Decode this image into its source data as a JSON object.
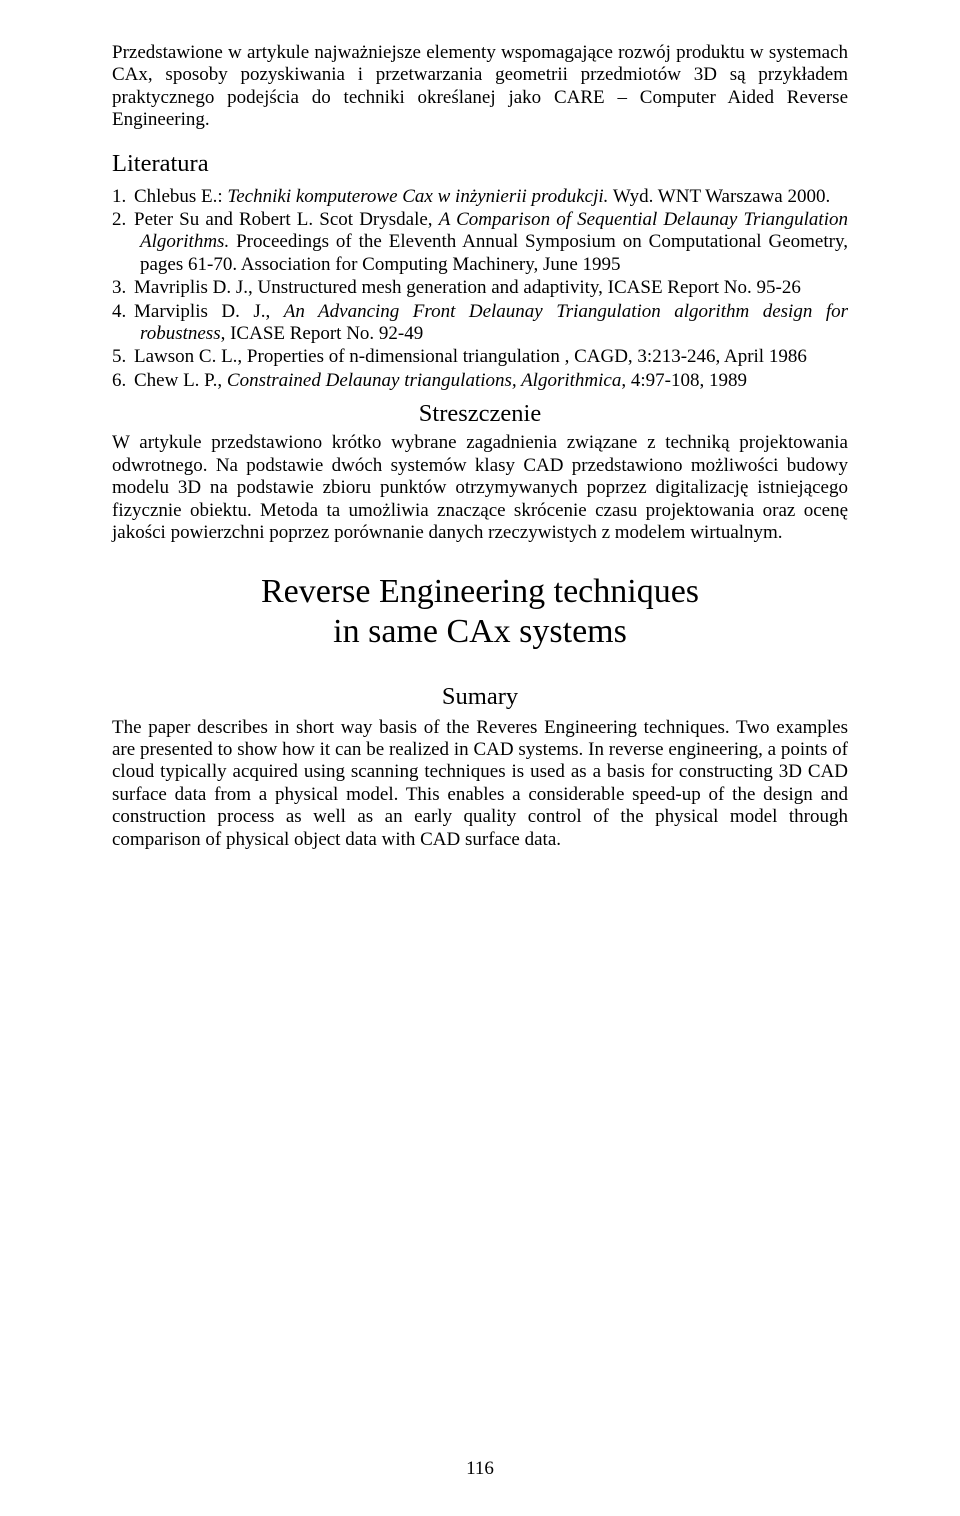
{
  "intro_paragraph": "Przedstawione w artykule najważniejsze elementy wspomagające rozwój produktu w systemach CAx, sposoby pozyskiwania i przetwarzania geometrii przedmiotów 3D są przykładem praktycznego podejścia do techniki określanej jako CARE – Computer Aided Reverse Engineering.",
  "literatura_heading": "Literatura",
  "refs": [
    {
      "num": "1.",
      "pre": "Chlebus E.: ",
      "ital": "Techniki komputerowe Cax w inżynierii produkcji.",
      "post": " Wyd. WNT Warszawa 2000."
    },
    {
      "num": "2.",
      "pre": "Peter Su and Robert L. Scot Drysdale, ",
      "ital": "A Comparison of Sequential Delaunay Triangulation Algorithms.",
      "post": " Proceedings of the Eleventh Annual Symposium on Computational Geometry, pages 61-70. Association for Computing Machinery, June 1995"
    },
    {
      "num": "3.",
      "pre": "Mavriplis D. J., Unstructured mesh generation and adaptivity, ICASE Report No. 95-26",
      "ital": "",
      "post": ""
    },
    {
      "num": "4.",
      "pre": "Marviplis D. J., ",
      "ital": "An Advancing Front Delaunay Triangulation algorithm design for robustness",
      "post": ", ICASE Report No. 92-49"
    },
    {
      "num": "5.",
      "pre": "Lawson C. L., Properties of n-dimensional triangulation , CAGD, 3:213-246, April 1986",
      "ital": "",
      "post": ""
    },
    {
      "num": "6.",
      "pre": "Chew L. P., ",
      "ital": "Constrained Delaunay triangulations, Algorithmica",
      "post": ", 4:97-108, 1989"
    }
  ],
  "streszczenie_heading": "Streszczenie",
  "streszczenie_body": "W artykule przedstawiono krótko wybrane zagadnienia związane z techniką projektowania odwrotnego. Na podstawie dwóch systemów klasy CAD przedstawiono możliwości budowy modelu 3D na podstawie zbioru punktów otrzymywanych poprzez digitalizację istniejącego fizycznie obiektu. Metoda ta umożliwia znaczące skrócenie czasu projektowania oraz ocenę jakości powierzchni poprzez porównanie danych rzeczywistych z modelem wirtualnym.",
  "title_line1": "Reverse Engineering techniques",
  "title_line2": "in same CAx systems",
  "summary_heading": "Sumary",
  "summary_body": "The paper describes in short way basis of the Reveres Engineering techniques. Two examples are presented to show how it can be realized in CAD systems. In reverse engineering, a points of cloud typically acquired using scanning techniques is used as a basis for constructing 3D CAD surface data from a physical model. This enables a considerable speed-up of the design and construction process as well as an early quality control of the physical model through comparison of physical object data with CAD surface data.",
  "page_number": "116"
}
